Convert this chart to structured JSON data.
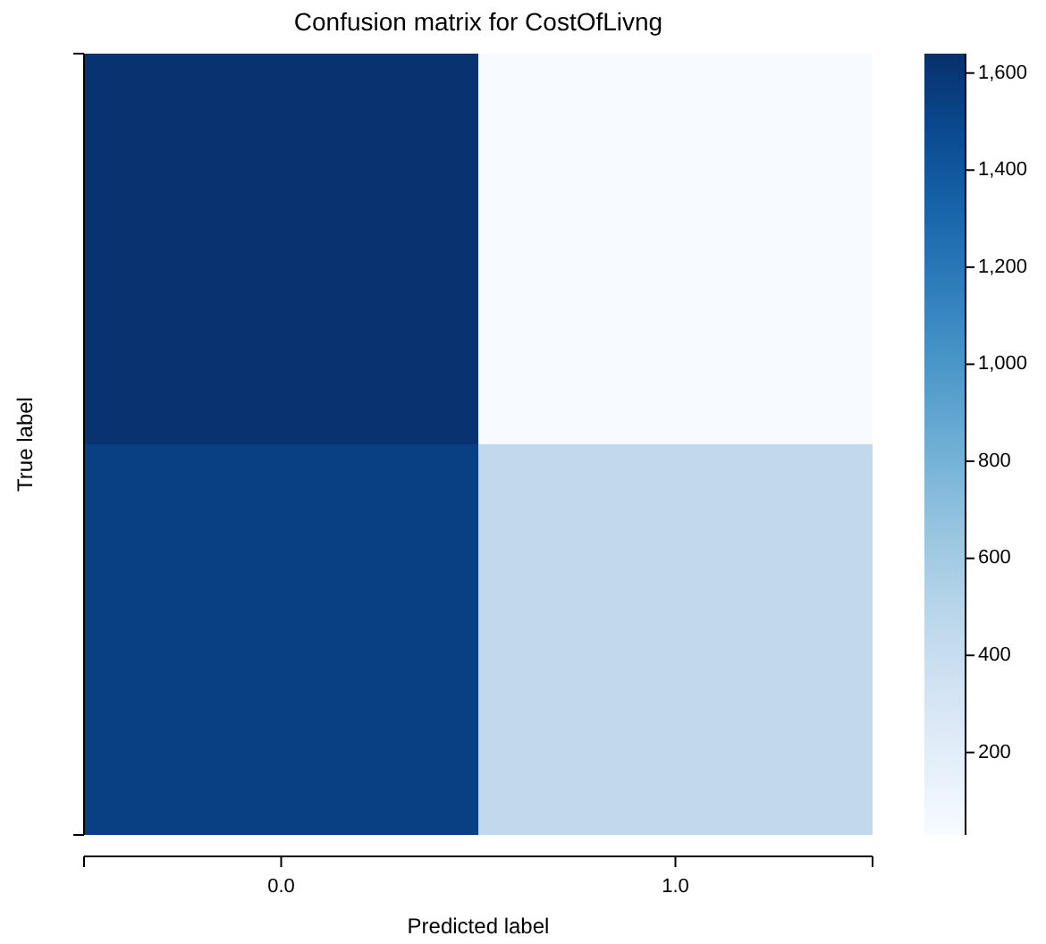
{
  "chart_data": {
    "type": "heatmap",
    "title": "Confusion matrix for CostOfLivng",
    "xlabel": "Predicted label",
    "ylabel": "True label",
    "categories": [
      "0.0",
      "1.0"
    ],
    "y_categories": [
      null,
      null
    ],
    "cells": [
      [
        1620,
        30
      ],
      [
        1540,
        450
      ]
    ],
    "clim": [
      30,
      1640
    ],
    "cticks": [
      {
        "value": 200,
        "label": "200"
      },
      {
        "value": 400,
        "label": "400"
      },
      {
        "value": 600,
        "label": "600"
      },
      {
        "value": 800,
        "label": "800"
      },
      {
        "value": 1000,
        "label": "1,000"
      },
      {
        "value": 1200,
        "label": "1,200"
      },
      {
        "value": 1400,
        "label": "1,400"
      },
      {
        "value": 1600,
        "label": "1,600"
      }
    ]
  }
}
